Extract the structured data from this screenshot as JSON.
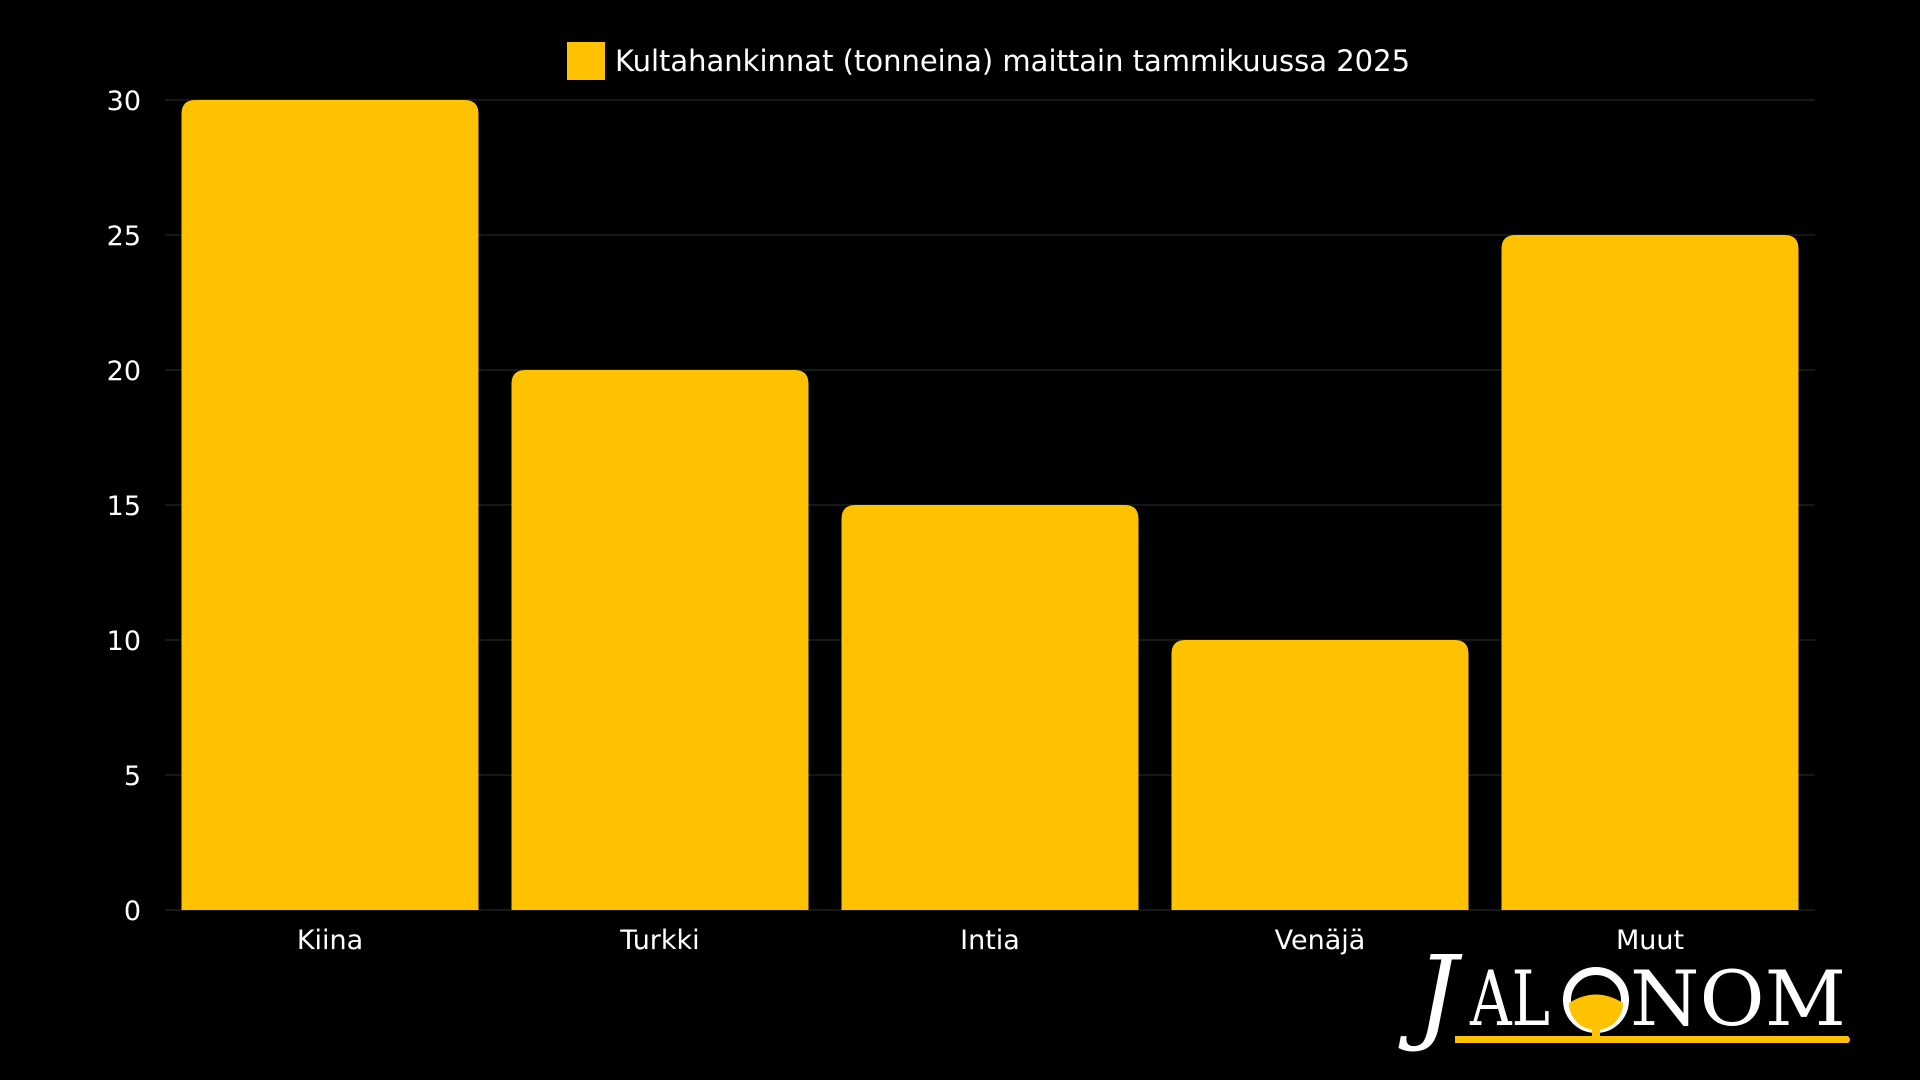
{
  "chart_data": {
    "type": "bar",
    "categories": [
      "Kiina",
      "Turkki",
      "Intia",
      "Venäjä",
      "Muut"
    ],
    "series": [
      {
        "name": "Kultahankinnat (tonneina) maittain tammikuussa 2025",
        "values": [
          30,
          20,
          15,
          10,
          25
        ],
        "color": "#FEC200"
      }
    ],
    "ylim": [
      0,
      30
    ],
    "yticks": [
      0,
      5,
      10,
      15,
      20,
      25,
      30
    ],
    "grid": true,
    "legend_position": "top-center",
    "background": "#000000",
    "gridline_color": "#2e2e2e",
    "text_color": "#ffffff"
  },
  "logo": {
    "text": "JALONOM",
    "accent_color": "#FEC200"
  }
}
